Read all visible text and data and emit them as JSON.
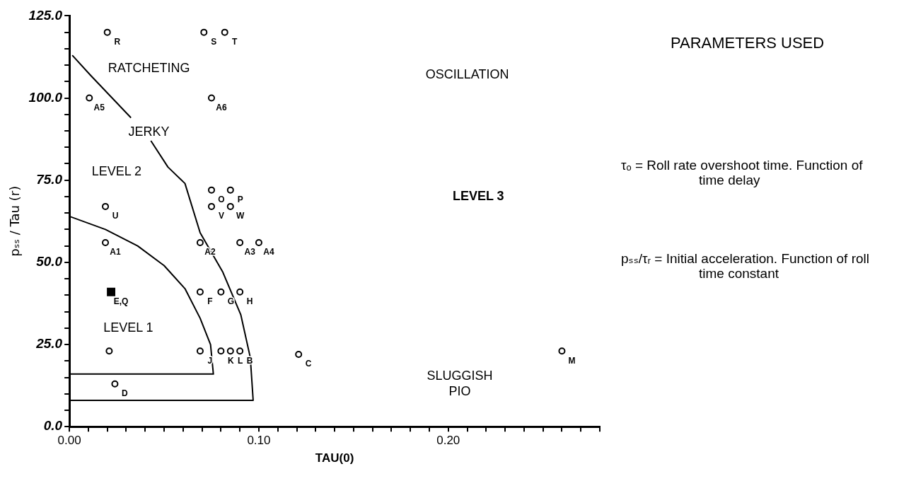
{
  "chart_data": {
    "type": "scatter",
    "xlabel": "TAU(0)",
    "ylabel": "pₛₛ / Tau (r)",
    "xlim": [
      0,
      0.28
    ],
    "ylim": [
      0,
      125
    ],
    "xticks": [
      {
        "value": 0,
        "label": "0.00"
      },
      {
        "value": 0.01,
        "label": null
      },
      {
        "value": 0.02,
        "label": null
      },
      {
        "value": 0.03,
        "label": null
      },
      {
        "value": 0.04,
        "label": null
      },
      {
        "value": 0.05,
        "label": null
      },
      {
        "value": 0.06,
        "label": null
      },
      {
        "value": 0.07,
        "label": null
      },
      {
        "value": 0.08,
        "label": null
      },
      {
        "value": 0.09,
        "label": null
      },
      {
        "value": 0.1,
        "label": "0.10"
      },
      {
        "value": 0.11,
        "label": null
      },
      {
        "value": 0.12,
        "label": null
      },
      {
        "value": 0.13,
        "label": null
      },
      {
        "value": 0.14,
        "label": null
      },
      {
        "value": 0.15,
        "label": null
      },
      {
        "value": 0.16,
        "label": null
      },
      {
        "value": 0.17,
        "label": null
      },
      {
        "value": 0.18,
        "label": null
      },
      {
        "value": 0.19,
        "label": null
      },
      {
        "value": 0.2,
        "label": "0.20"
      },
      {
        "value": 0.21,
        "label": null
      },
      {
        "value": 0.22,
        "label": null
      },
      {
        "value": 0.23,
        "label": null
      },
      {
        "value": 0.24,
        "label": null
      },
      {
        "value": 0.25,
        "label": null
      },
      {
        "value": 0.26,
        "label": null
      },
      {
        "value": 0.27,
        "label": null
      },
      {
        "value": 0.28,
        "label": null
      }
    ],
    "yticks": [
      {
        "value": 0,
        "label": "0.0"
      },
      {
        "value": 5,
        "label": null
      },
      {
        "value": 10,
        "label": null
      },
      {
        "value": 15,
        "label": null
      },
      {
        "value": 20,
        "label": null
      },
      {
        "value": 25,
        "label": "25.0"
      },
      {
        "value": 30,
        "label": null
      },
      {
        "value": 35,
        "label": null
      },
      {
        "value": 40,
        "label": null
      },
      {
        "value": 45,
        "label": null
      },
      {
        "value": 50,
        "label": "50.0"
      },
      {
        "value": 55,
        "label": null
      },
      {
        "value": 60,
        "label": null
      },
      {
        "value": 65,
        "label": null
      },
      {
        "value": 70,
        "label": null
      },
      {
        "value": 75,
        "label": "75.0"
      },
      {
        "value": 80,
        "label": null
      },
      {
        "value": 85,
        "label": null
      },
      {
        "value": 90,
        "label": null
      },
      {
        "value": 95,
        "label": null
      },
      {
        "value": 100,
        "label": "100.0"
      },
      {
        "value": 105,
        "label": null
      },
      {
        "value": 110,
        "label": null
      },
      {
        "value": 115,
        "label": null
      },
      {
        "value": 120,
        "label": null
      },
      {
        "value": 125,
        "label": "125.0"
      }
    ],
    "series": [
      {
        "type": "scatter",
        "marker": "circle",
        "color": "#000000",
        "x": [
          0.02,
          0.071,
          0.082,
          0.0105,
          0.075,
          0.075,
          0.085,
          0.075,
          0.085,
          0.019,
          0.019,
          0.069,
          0.09,
          0.1,
          0.069,
          0.08,
          0.09,
          0.08,
          0.085,
          0.09,
          0.024,
          0.121,
          0.26
        ],
        "values": [
          120,
          120,
          120,
          100,
          100,
          72,
          72,
          67,
          67,
          67,
          56,
          56,
          56,
          56,
          41,
          41,
          41,
          23,
          23,
          23,
          13,
          22,
          23
        ]
      },
      {
        "type": "scatter",
        "marker": "circle",
        "color": "#000000",
        "x": [
          0.021,
          0.069
        ],
        "values": [
          23,
          23
        ]
      },
      {
        "type": "scatter",
        "marker": "square",
        "color": "#000000",
        "x": [
          0.022
        ],
        "values": [
          41
        ]
      },
      {
        "type": "line",
        "marker": "none",
        "color": "#000000",
        "x": [
          0,
          0.019,
          0.036,
          0.05,
          0.061,
          0.069,
          0.0745,
          0.076,
          0
        ],
        "values": [
          64,
          60,
          55,
          49,
          42,
          33,
          25,
          16,
          16
        ]
      },
      {
        "type": "line",
        "marker": "none",
        "color": "#000000",
        "x": [
          0.043,
          0.052,
          0.061,
          0.069,
          0.081,
          0.0905,
          0.0955,
          0.097,
          0
        ],
        "values": [
          87,
          79,
          74,
          59,
          47,
          34,
          21,
          8,
          8
        ]
      },
      {
        "type": "line",
        "marker": "none",
        "color": "#000000",
        "x": [
          0.0015,
          0.011,
          0.0325
        ],
        "values": [
          113,
          107,
          94
        ]
      }
    ],
    "annotations": [
      "RATCHETING",
      "OSCILLATION",
      "JERKY",
      "LEVEL 2",
      "LEVEL 3",
      "LEVEL 1",
      "SLUGGISH\nPIO",
      {
        "text": "R",
        "x": 0.02,
        "y": 120
      },
      {
        "text": "S",
        "x": 0.071,
        "y": 120
      },
      {
        "text": "T",
        "x": 0.082,
        "y": 120
      },
      {
        "text": "A5",
        "x": 0.0105,
        "y": 100
      },
      {
        "text": "A6",
        "x": 0.075,
        "y": 100
      },
      {
        "text": "O",
        "x": 0.075,
        "y": 72
      },
      {
        "text": "P",
        "x": 0.085,
        "y": 72
      },
      {
        "text": "V",
        "x": 0.075,
        "y": 67
      },
      {
        "text": "W",
        "x": 0.085,
        "y": 67
      },
      {
        "text": "U",
        "x": 0.019,
        "y": 67
      },
      {
        "text": "A1",
        "x": 0.019,
        "y": 56
      },
      {
        "text": "A2",
        "x": 0.069,
        "y": 56
      },
      {
        "text": "A3",
        "x": 0.09,
        "y": 56
      },
      {
        "text": "A4",
        "x": 0.1,
        "y": 56
      },
      {
        "text": "E,Q",
        "x": 0.022,
        "y": 41
      },
      {
        "text": "F",
        "x": 0.069,
        "y": 41
      },
      {
        "text": "G",
        "x": 0.08,
        "y": 41
      },
      {
        "text": "H",
        "x": 0.09,
        "y": 41
      },
      {
        "text": "J",
        "x": 0.069,
        "y": 23
      },
      {
        "text": "K",
        "x": 0.08,
        "y": 23
      },
      {
        "text": "L",
        "x": 0.085,
        "y": 23
      },
      {
        "text": "B",
        "x": 0.09,
        "y": 23
      },
      {
        "text": "D",
        "x": 0.024,
        "y": 13
      },
      {
        "text": "C",
        "x": 0.121,
        "y": 22
      },
      {
        "text": "M",
        "x": 0.26,
        "y": 23
      },
      "PARAMETERS USED",
      "τₒ = Roll rate overshoot time. Function of time delay",
      "pₛₛ/τᵣ = Initial acceleration. Function of roll time constant"
    ]
  }
}
